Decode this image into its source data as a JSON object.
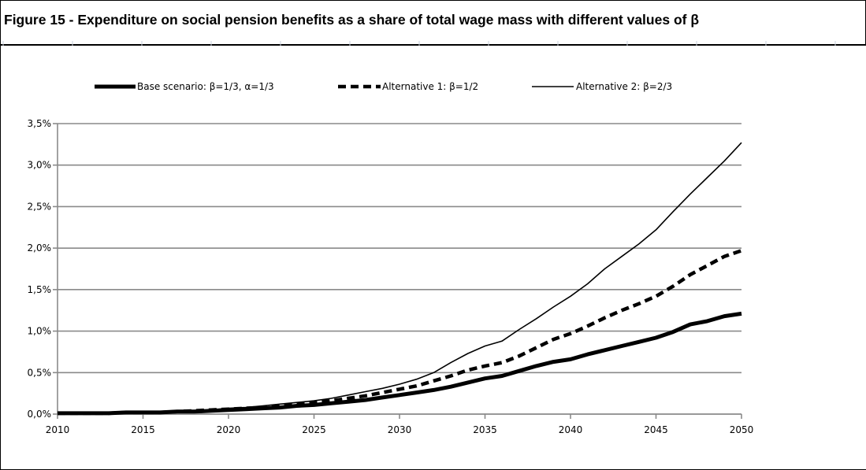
{
  "title": "Figure 15 - Expenditure on social pension benefits as a share of total wage mass with different values of β",
  "chart_data": {
    "type": "line",
    "title": "Figure 15 - Expenditure on social pension benefits as a share of total wage mass with different values of β",
    "xlabel": "",
    "ylabel": "",
    "xlim": [
      2010,
      2050
    ],
    "ylim": [
      0,
      0.035
    ],
    "x_ticks": [
      "2010",
      "2015",
      "2020",
      "2025",
      "2030",
      "2035",
      "2040",
      "2045",
      "2050"
    ],
    "y_ticks": [
      "0,0%",
      "0,5%",
      "1,0%",
      "1,5%",
      "2,0%",
      "2,5%",
      "3,0%",
      "3,5%"
    ],
    "y_tick_values": [
      0,
      0.005,
      0.01,
      0.015,
      0.02,
      0.025,
      0.03,
      0.035
    ],
    "grid": "horizontal",
    "legend_position": "top",
    "x": [
      2010,
      2011,
      2012,
      2013,
      2014,
      2015,
      2016,
      2017,
      2018,
      2019,
      2020,
      2021,
      2022,
      2023,
      2024,
      2025,
      2026,
      2027,
      2028,
      2029,
      2030,
      2031,
      2032,
      2033,
      2034,
      2035,
      2036,
      2037,
      2038,
      2039,
      2040,
      2041,
      2042,
      2043,
      2044,
      2045,
      2046,
      2047,
      2048,
      2049,
      2050
    ],
    "series": [
      {
        "name": "Base scenario: β=1/3, α=1/3",
        "style": "solid-thick",
        "color": "#000000",
        "values": [
          0.0001,
          0.0001,
          0.0001,
          0.0001,
          0.0002,
          0.0002,
          0.0002,
          0.0003,
          0.0003,
          0.0004,
          0.0005,
          0.0006,
          0.0007,
          0.0008,
          0.001,
          0.0011,
          0.0013,
          0.0015,
          0.0017,
          0.002,
          0.0023,
          0.0026,
          0.0029,
          0.0033,
          0.0038,
          0.0043,
          0.0046,
          0.0052,
          0.0058,
          0.0063,
          0.0066,
          0.0072,
          0.0077,
          0.0082,
          0.0087,
          0.0092,
          0.0099,
          0.0108,
          0.0112,
          0.0118,
          0.0121
        ]
      },
      {
        "name": "Alternative 1: β=1/2",
        "style": "dashed-thick",
        "color": "#000000",
        "values": [
          0.0001,
          0.0001,
          0.0001,
          0.0001,
          0.0002,
          0.0002,
          0.0002,
          0.0003,
          0.0004,
          0.0005,
          0.0006,
          0.0007,
          0.0008,
          0.001,
          0.0012,
          0.0014,
          0.0016,
          0.0019,
          0.0022,
          0.0026,
          0.003,
          0.0034,
          0.004,
          0.0046,
          0.0053,
          0.0058,
          0.0062,
          0.007,
          0.008,
          0.009,
          0.0097,
          0.0106,
          0.0116,
          0.0125,
          0.0133,
          0.0142,
          0.0154,
          0.0168,
          0.0179,
          0.019,
          0.0197
        ]
      },
      {
        "name": "Alternative 2: β=2/3",
        "style": "solid-thin",
        "color": "#000000",
        "values": [
          0.0001,
          0.0001,
          0.0001,
          0.0001,
          0.0002,
          0.0002,
          0.0003,
          0.0003,
          0.0004,
          0.0005,
          0.0007,
          0.0008,
          0.001,
          0.0012,
          0.0014,
          0.0016,
          0.0019,
          0.0023,
          0.0027,
          0.0031,
          0.0036,
          0.0042,
          0.005,
          0.0062,
          0.0073,
          0.0082,
          0.0088,
          0.0102,
          0.0115,
          0.0129,
          0.0142,
          0.0157,
          0.0175,
          0.019,
          0.0205,
          0.0222,
          0.0244,
          0.0265,
          0.0285,
          0.0305,
          0.0327
        ]
      }
    ]
  }
}
